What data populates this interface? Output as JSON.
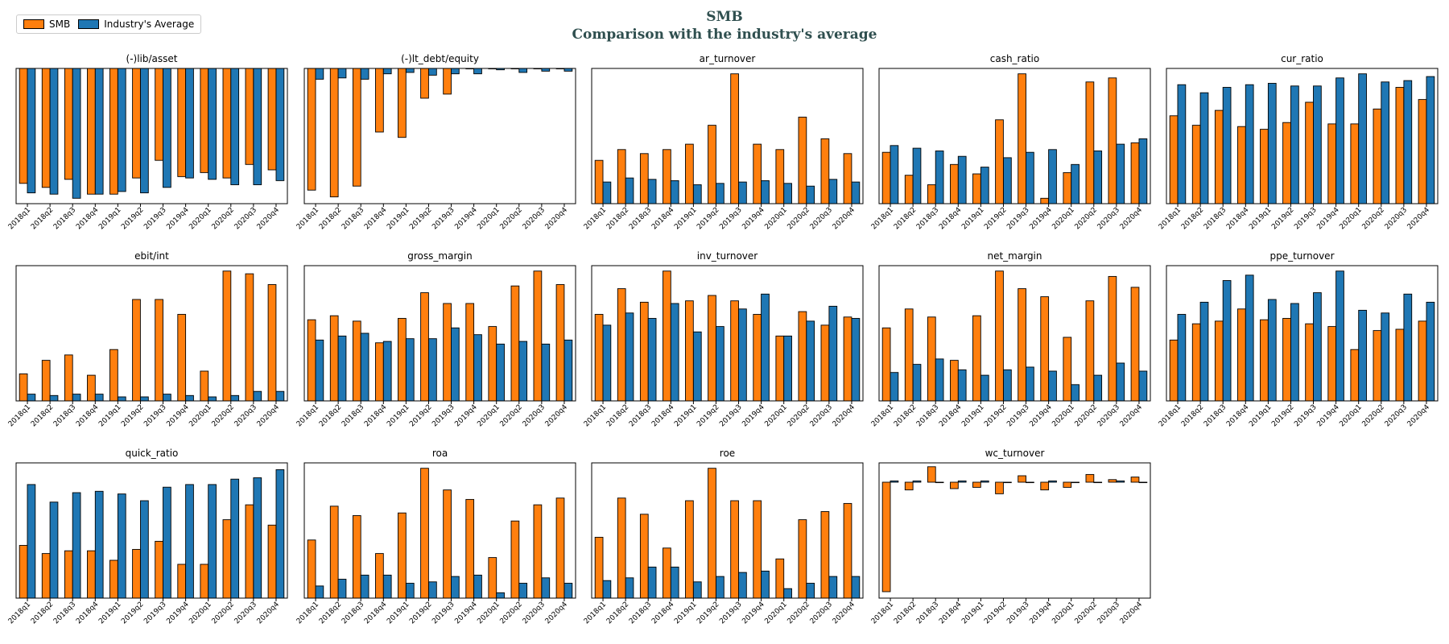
{
  "header": {
    "title": "SMB",
    "subtitle": "Comparison with the industry's average"
  },
  "legend": {
    "items": [
      {
        "label": "SMB",
        "color": "#ff7f0e"
      },
      {
        "label": "Industry's Average",
        "color": "#1f77b4"
      }
    ]
  },
  "chart_data": [
    {
      "type": "bar",
      "title": "(-)lib/asset",
      "categories": [
        "2018q1",
        "2018q2",
        "2018q3",
        "2018q4",
        "2019q1",
        "2019q2",
        "2019q3",
        "2019q4",
        "2020q1",
        "2020q2",
        "2020q3",
        "2020q4"
      ],
      "ylim": [
        -1.0,
        0
      ],
      "series": [
        {
          "name": "SMB",
          "values": [
            -0.85,
            -0.88,
            -0.82,
            -0.93,
            -0.93,
            -0.81,
            -0.68,
            -0.8,
            -0.77,
            -0.81,
            -0.71,
            -0.75
          ]
        },
        {
          "name": "Industry's Average",
          "values": [
            -0.92,
            -0.93,
            -0.96,
            -0.93,
            -0.91,
            -0.92,
            -0.88,
            -0.81,
            -0.82,
            -0.86,
            -0.86,
            -0.83
          ]
        }
      ]
    },
    {
      "type": "bar",
      "title": "(-)lt_debt/equity",
      "categories": [
        "2018q1",
        "2018q2",
        "2018q3",
        "2018q4",
        "2019q1",
        "2019q2",
        "2019q3",
        "2019q4",
        "2020q1",
        "2020q2",
        "2020q3",
        "2020q4"
      ],
      "ylim": [
        -1.0,
        0
      ],
      "series": [
        {
          "name": "SMB",
          "values": [
            -0.9,
            -0.95,
            -0.87,
            -0.47,
            -0.51,
            -0.22,
            -0.19,
            0,
            0,
            0,
            0,
            0
          ]
        },
        {
          "name": "Industry's Average",
          "values": [
            -0.08,
            -0.07,
            -0.08,
            -0.04,
            -0.03,
            -0.05,
            -0.04,
            -0.04,
            -0.01,
            -0.03,
            -0.02,
            -0.02
          ]
        }
      ]
    },
    {
      "type": "bar",
      "title": "ar_turnover",
      "categories": [
        "2018q1",
        "2018q2",
        "2018q3",
        "2018q4",
        "2019q1",
        "2019q2",
        "2019q3",
        "2019q4",
        "2020q1",
        "2020q2",
        "2020q3",
        "2020q4"
      ],
      "ylim": [
        0,
        1.0
      ],
      "series": [
        {
          "name": "SMB",
          "values": [
            0.32,
            0.4,
            0.37,
            0.4,
            0.44,
            0.58,
            0.96,
            0.44,
            0.4,
            0.64,
            0.48,
            0.37
          ]
        },
        {
          "name": "Industry's Average",
          "values": [
            0.16,
            0.19,
            0.18,
            0.17,
            0.14,
            0.15,
            0.16,
            0.17,
            0.15,
            0.13,
            0.18,
            0.16
          ]
        }
      ]
    },
    {
      "type": "bar",
      "title": "cash_ratio",
      "categories": [
        "2018q1",
        "2018q2",
        "2018q3",
        "2018q4",
        "2019q1",
        "2019q2",
        "2019q3",
        "2019q4",
        "2020q1",
        "2020q2",
        "2020q3",
        "2020q4"
      ],
      "ylim": [
        0,
        1.0
      ],
      "series": [
        {
          "name": "SMB",
          "values": [
            0.38,
            0.21,
            0.14,
            0.29,
            0.22,
            0.62,
            0.96,
            0.04,
            0.23,
            0.9,
            0.93,
            0.45
          ]
        },
        {
          "name": "Industry's Average",
          "values": [
            0.43,
            0.41,
            0.39,
            0.35,
            0.27,
            0.34,
            0.38,
            0.4,
            0.29,
            0.39,
            0.44,
            0.48
          ]
        }
      ]
    },
    {
      "type": "bar",
      "title": "cur_ratio",
      "categories": [
        "2018q1",
        "2018q2",
        "2018q3",
        "2018q4",
        "2019q1",
        "2019q2",
        "2019q3",
        "2019q4",
        "2020q1",
        "2020q2",
        "2020q3",
        "2020q4"
      ],
      "ylim": [
        0,
        1.0
      ],
      "series": [
        {
          "name": "SMB",
          "values": [
            0.65,
            0.58,
            0.69,
            0.57,
            0.55,
            0.6,
            0.75,
            0.59,
            0.59,
            0.7,
            0.86,
            0.77
          ]
        },
        {
          "name": "Industry's Average",
          "values": [
            0.88,
            0.82,
            0.86,
            0.88,
            0.89,
            0.87,
            0.87,
            0.93,
            0.96,
            0.9,
            0.91,
            0.94
          ]
        }
      ]
    },
    {
      "type": "bar",
      "title": "ebit/int",
      "categories": [
        "2018q1",
        "2018q2",
        "2018q3",
        "2018q4",
        "2019q1",
        "2019q2",
        "2019q3",
        "2019q4",
        "2020q1",
        "2020q2",
        "2020q3",
        "2020q4"
      ],
      "ylim": [
        0,
        1.0
      ],
      "series": [
        {
          "name": "SMB",
          "values": [
            0.2,
            0.3,
            0.34,
            0.19,
            0.38,
            0.75,
            0.75,
            0.64,
            0.22,
            0.96,
            0.94,
            0.86
          ]
        },
        {
          "name": "Industry's Average",
          "values": [
            0.05,
            0.04,
            0.05,
            0.05,
            0.03,
            0.03,
            0.05,
            0.04,
            0.03,
            0.04,
            0.07,
            0.07
          ]
        }
      ]
    },
    {
      "type": "bar",
      "title": "gross_margin",
      "categories": [
        "2018q1",
        "2018q2",
        "2018q3",
        "2018q4",
        "2019q1",
        "2019q2",
        "2019q3",
        "2019q4",
        "2020q1",
        "2020q2",
        "2020q3",
        "2020q4"
      ],
      "ylim": [
        0,
        1.0
      ],
      "series": [
        {
          "name": "SMB",
          "values": [
            0.6,
            0.63,
            0.59,
            0.43,
            0.61,
            0.8,
            0.72,
            0.72,
            0.55,
            0.85,
            0.96,
            0.86
          ]
        },
        {
          "name": "Industry's Average",
          "values": [
            0.45,
            0.48,
            0.5,
            0.44,
            0.46,
            0.46,
            0.54,
            0.49,
            0.42,
            0.44,
            0.42,
            0.45
          ]
        }
      ]
    },
    {
      "type": "bar",
      "title": "inv_turnover",
      "categories": [
        "2018q1",
        "2018q2",
        "2018q3",
        "2018q4",
        "2019q1",
        "2019q2",
        "2019q3",
        "2019q4",
        "2020q1",
        "2020q2",
        "2020q3",
        "2020q4"
      ],
      "ylim": [
        0,
        1.0
      ],
      "series": [
        {
          "name": "SMB",
          "values": [
            0.64,
            0.83,
            0.73,
            0.96,
            0.74,
            0.78,
            0.74,
            0.64,
            0.48,
            0.66,
            0.56,
            0.62
          ]
        },
        {
          "name": "Industry's Average",
          "values": [
            0.56,
            0.65,
            0.61,
            0.72,
            0.51,
            0.55,
            0.68,
            0.79,
            0.48,
            0.59,
            0.7,
            0.61
          ]
        }
      ]
    },
    {
      "type": "bar",
      "title": "net_margin",
      "categories": [
        "2018q1",
        "2018q2",
        "2018q3",
        "2018q4",
        "2019q1",
        "2019q2",
        "2019q3",
        "2019q4",
        "2020q1",
        "2020q2",
        "2020q3",
        "2020q4"
      ],
      "ylim": [
        0,
        1.0
      ],
      "series": [
        {
          "name": "SMB",
          "values": [
            0.54,
            0.68,
            0.62,
            0.3,
            0.63,
            0.96,
            0.83,
            0.77,
            0.47,
            0.74,
            0.92,
            0.84
          ]
        },
        {
          "name": "Industry's Average",
          "values": [
            0.21,
            0.27,
            0.31,
            0.23,
            0.19,
            0.23,
            0.25,
            0.22,
            0.12,
            0.19,
            0.28,
            0.22
          ]
        }
      ]
    },
    {
      "type": "bar",
      "title": "ppe_turnover",
      "categories": [
        "2018q1",
        "2018q2",
        "2018q3",
        "2018q4",
        "2019q1",
        "2019q2",
        "2019q3",
        "2019q4",
        "2020q1",
        "2020q2",
        "2020q3",
        "2020q4"
      ],
      "ylim": [
        0,
        1.0
      ],
      "series": [
        {
          "name": "SMB",
          "values": [
            0.45,
            0.57,
            0.59,
            0.68,
            0.6,
            0.61,
            0.57,
            0.55,
            0.38,
            0.52,
            0.53,
            0.59
          ]
        },
        {
          "name": "Industry's Average",
          "values": [
            0.64,
            0.73,
            0.89,
            0.93,
            0.75,
            0.72,
            0.8,
            0.96,
            0.67,
            0.65,
            0.79,
            0.73
          ]
        }
      ]
    },
    {
      "type": "bar",
      "title": "quick_ratio",
      "categories": [
        "2018q1",
        "2018q2",
        "2018q3",
        "2018q4",
        "2019q1",
        "2019q2",
        "2019q3",
        "2019q4",
        "2020q1",
        "2020q2",
        "2020q3",
        "2020q4"
      ],
      "ylim": [
        0,
        1.0
      ],
      "series": [
        {
          "name": "SMB",
          "values": [
            0.39,
            0.33,
            0.35,
            0.35,
            0.28,
            0.36,
            0.42,
            0.25,
            0.25,
            0.58,
            0.69,
            0.54
          ]
        },
        {
          "name": "Industry's Average",
          "values": [
            0.84,
            0.71,
            0.78,
            0.79,
            0.77,
            0.72,
            0.82,
            0.84,
            0.84,
            0.88,
            0.89,
            0.95
          ]
        }
      ]
    },
    {
      "type": "bar",
      "title": "roa",
      "categories": [
        "2018q1",
        "2018q2",
        "2018q3",
        "2018q4",
        "2019q1",
        "2019q2",
        "2019q3",
        "2019q4",
        "2020q1",
        "2020q2",
        "2020q3",
        "2020q4"
      ],
      "ylim": [
        0,
        1.0
      ],
      "series": [
        {
          "name": "SMB",
          "values": [
            0.43,
            0.68,
            0.61,
            0.33,
            0.63,
            0.96,
            0.8,
            0.73,
            0.3,
            0.57,
            0.69,
            0.74
          ]
        },
        {
          "name": "Industry's Average",
          "values": [
            0.09,
            0.14,
            0.17,
            0.17,
            0.11,
            0.12,
            0.16,
            0.17,
            0.04,
            0.11,
            0.15,
            0.11
          ]
        }
      ]
    },
    {
      "type": "bar",
      "title": "roe",
      "categories": [
        "2018q1",
        "2018q2",
        "2018q3",
        "2018q4",
        "2019q1",
        "2019q2",
        "2019q3",
        "2019q4",
        "2020q1",
        "2020q2",
        "2020q3",
        "2020q4"
      ],
      "ylim": [
        0,
        1.0
      ],
      "series": [
        {
          "name": "SMB",
          "values": [
            0.45,
            0.74,
            0.62,
            0.37,
            0.72,
            0.96,
            0.72,
            0.72,
            0.29,
            0.58,
            0.64,
            0.7
          ]
        },
        {
          "name": "Industry's Average",
          "values": [
            0.13,
            0.15,
            0.23,
            0.23,
            0.12,
            0.16,
            0.19,
            0.2,
            0.07,
            0.11,
            0.16,
            0.16
          ]
        }
      ]
    },
    {
      "type": "bar",
      "title": "wc_turnover",
      "categories": [
        "2018q1",
        "2018q2",
        "2018q3",
        "2018q4",
        "2019q1",
        "2019q2",
        "2019q3",
        "2019q4",
        "2020q1",
        "2020q2",
        "2020q3",
        "2020q4"
      ],
      "ylim": [
        -0.9,
        0.15
      ],
      "series": [
        {
          "name": "SMB",
          "values": [
            -0.85,
            -0.06,
            0.12,
            -0.05,
            -0.04,
            -0.09,
            0.05,
            -0.06,
            -0.04,
            0.06,
            0.02,
            0.04
          ]
        },
        {
          "name": "Industry's Average",
          "values": [
            0.01,
            0.01,
            0.0,
            0.01,
            0.01,
            0.0,
            0.0,
            0.01,
            0.0,
            0.0,
            0.01,
            0.0
          ]
        }
      ]
    }
  ]
}
